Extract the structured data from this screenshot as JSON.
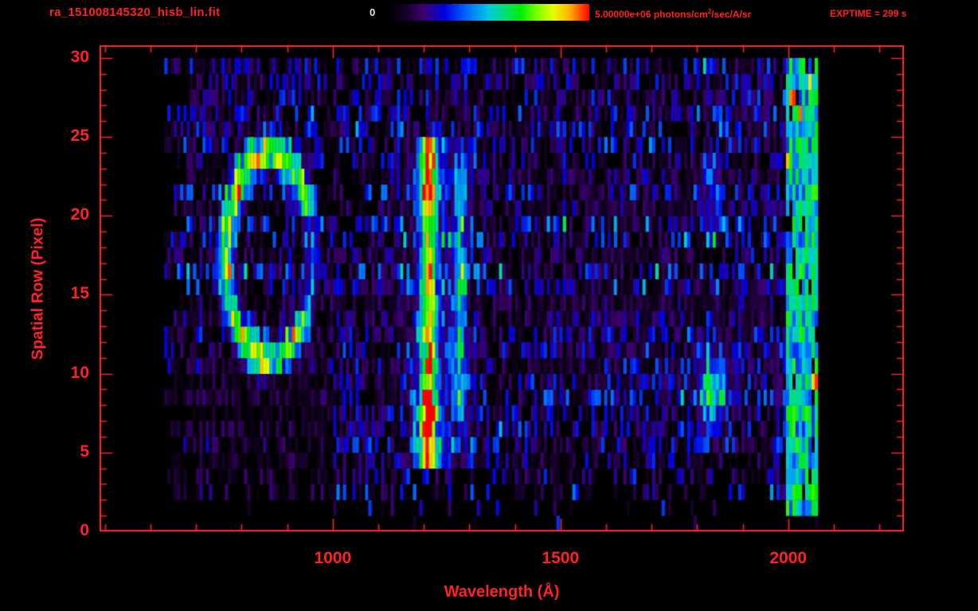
{
  "header": {
    "title": "ra_151008145320_hisb_lin.fit",
    "exptime_label": "EXPTIME = 299 s",
    "colorbar": {
      "min_label": "0",
      "max_label_pre": "5.00000e+06 photons/cm",
      "max_label_sup": "2",
      "max_label_post": "/sec/A/sr"
    }
  },
  "chart_data": {
    "type": "heatmap",
    "title": "ra_151008145320_hisb_lin.fit",
    "xlabel": "Wavelength (Å)",
    "ylabel": "Spatial Row (Pixel)",
    "xlim": [
      488,
      2254
    ],
    "ylim": [
      0,
      30.8
    ],
    "x_major_ticks": [
      1000,
      1500,
      2000
    ],
    "x_minor_tick_step": 100,
    "y_major_ticks": [
      0,
      5,
      10,
      15,
      20,
      25,
      30
    ],
    "y_minor_tick_step": 1,
    "colorbar_min": 0,
    "colorbar_max": 5000000,
    "colorbar_units": "photons/cm^2/sec/A/sr",
    "exposure_time_s": 299,
    "axis_color": "#ff2222",
    "min_label_color": "#e0e0e0",
    "background": "#000000",
    "grid": false,
    "legend": false,
    "data_extent": {
      "wavelength": [
        630,
        2062
      ],
      "rows": [
        0,
        30.5
      ]
    },
    "colormap": [
      {
        "t": 0.0,
        "color": "#000000"
      },
      {
        "t": 0.1,
        "color": "#1a0030"
      },
      {
        "t": 0.18,
        "color": "#3c0070"
      },
      {
        "t": 0.28,
        "color": "#0000e0"
      },
      {
        "t": 0.4,
        "color": "#0070ff"
      },
      {
        "t": 0.5,
        "color": "#00c8e0"
      },
      {
        "t": 0.58,
        "color": "#00e07a"
      },
      {
        "t": 0.66,
        "color": "#00ee00"
      },
      {
        "t": 0.74,
        "color": "#7aff00"
      },
      {
        "t": 0.82,
        "color": "#e8ff00"
      },
      {
        "t": 0.9,
        "color": "#ffb400"
      },
      {
        "t": 1.0,
        "color": "#ff0000"
      }
    ],
    "features": [
      {
        "name": "ring-feature",
        "type": "ellipse-ring",
        "center_wavelength": 857,
        "center_row": 17.5,
        "semi_axis_wavelength": 95,
        "semi_axis_rows": 6.5,
        "thickness": 0.12,
        "amplitude": 0.58
      },
      {
        "name": "lyman-alpha-emission-line",
        "type": "vertical-line",
        "wavelength": 1206,
        "sigma": 13,
        "rows": [
          5,
          24
        ],
        "amplitude": 0.62
      },
      {
        "name": "lyman-alpha-halo",
        "type": "vertical-line",
        "wavelength": 1235,
        "sigma": 55,
        "rows": [
          5,
          24
        ],
        "amplitude": 0.17
      },
      {
        "name": "secondary-emission-line",
        "type": "vertical-line",
        "wavelength": 1276,
        "sigma": 9,
        "rows": [
          7,
          23
        ],
        "amplitude": 0.34
      },
      {
        "name": "right-edge-airglow-band",
        "type": "band",
        "wavelength": [
          1995,
          2062
        ],
        "rows": [
          1,
          30.5
        ],
        "amplitude": [
          0.32,
          0.7
        ]
      },
      {
        "name": "emission-blob",
        "type": "gaussian",
        "wavelength": 1828,
        "row": 8.8,
        "sigma_wavelength": 22,
        "sigma_rows": 1.6,
        "amplitude": 0.45
      },
      {
        "name": "blue-column",
        "type": "vertical-line",
        "wavelength": 1830,
        "sigma": 15,
        "rows": [
          18.5,
          23.5
        ],
        "amplitude": 0.22
      }
    ],
    "noise": {
      "fill_fraction": 0.66,
      "base": 0.05,
      "range": 0.3,
      "seed": 20151008
    }
  }
}
